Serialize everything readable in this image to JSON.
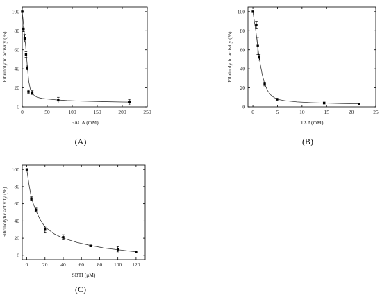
{
  "chart_data": [
    {
      "type": "scatter",
      "panel_label": "(A)",
      "xlabel": "EACA (mM)",
      "ylabel": "Fibrinolytic activity (%)",
      "xlim": [
        0,
        250
      ],
      "ylim": [
        0,
        105
      ],
      "xticks": [
        0,
        50,
        100,
        150,
        200,
        250
      ],
      "yticks": [
        0,
        20,
        40,
        60,
        80,
        100
      ],
      "grid": false,
      "fit_curve": true,
      "x": [
        0,
        2.5,
        5,
        7.5,
        10,
        12.5,
        20,
        72,
        215
      ],
      "y": [
        100,
        82,
        72,
        55,
        41,
        16,
        15,
        7,
        5
      ],
      "yerr": [
        0,
        3,
        4,
        3,
        2,
        2,
        2,
        3,
        3
      ],
      "fit_x": [
        0,
        1.5,
        3,
        5,
        7,
        9,
        11,
        13,
        16,
        20,
        25,
        30,
        40,
        55,
        70,
        90,
        120,
        160,
        200,
        215
      ],
      "fit_y": [
        100,
        92,
        84,
        73,
        63,
        50,
        38,
        27,
        19,
        14,
        11.5,
        10,
        8.8,
        8,
        7.3,
        6.6,
        6,
        5.5,
        5.1,
        5
      ]
    },
    {
      "type": "scatter",
      "panel_label": "(B)",
      "xlabel": "TXA(mM)",
      "ylabel": "Fibrinolytic activity (%)",
      "xlim": [
        -1,
        25
      ],
      "ylim": [
        0,
        105
      ],
      "xticks": [
        0,
        5,
        10,
        15,
        20,
        25
      ],
      "yticks": [
        0,
        20,
        40,
        60,
        80,
        100
      ],
      "grid": false,
      "fit_curve": true,
      "x": [
        0,
        0.7,
        1.0,
        1.3,
        2.4,
        4.9,
        14.5,
        21.6
      ],
      "y": [
        100,
        86,
        64,
        52,
        24,
        8,
        4,
        3
      ],
      "yerr": [
        0,
        4,
        9,
        3,
        2,
        1,
        1,
        1
      ],
      "fit_x": [
        0,
        0.3,
        0.6,
        0.9,
        1.2,
        1.5,
        1.9,
        2.4,
        3.0,
        3.8,
        4.9,
        6.5,
        9,
        12,
        15,
        18,
        21.6
      ],
      "fit_y": [
        100,
        90,
        80,
        67,
        55,
        45,
        34,
        24,
        17,
        11.5,
        8,
        6.5,
        5.2,
        4.4,
        3.9,
        3.5,
        3.2
      ]
    },
    {
      "type": "scatter",
      "panel_label": "(C)",
      "xlabel": "SBTI (μM)",
      "ylabel": "Fibrinolytic activity (%)",
      "xlim": [
        -5,
        130
      ],
      "ylim": [
        -5,
        105
      ],
      "xticks": [
        0,
        20,
        40,
        60,
        80,
        100,
        120
      ],
      "yticks": [
        0,
        20,
        40,
        60,
        80,
        100
      ],
      "grid": false,
      "fit_curve": true,
      "x": [
        0,
        5,
        10,
        20,
        40,
        70,
        100,
        120
      ],
      "y": [
        100,
        66,
        53,
        30,
        21,
        11,
        7,
        4
      ],
      "yerr": [
        0,
        2,
        2,
        4,
        3,
        1,
        3,
        1
      ],
      "fit_x": [
        0,
        2.5,
        5,
        7.5,
        10,
        15,
        20,
        30,
        40,
        55,
        70,
        85,
        100,
        120
      ],
      "fit_y": [
        100,
        82,
        67,
        59,
        52,
        41,
        33,
        25,
        20,
        15,
        11.5,
        8.5,
        6.5,
        4
      ]
    }
  ]
}
